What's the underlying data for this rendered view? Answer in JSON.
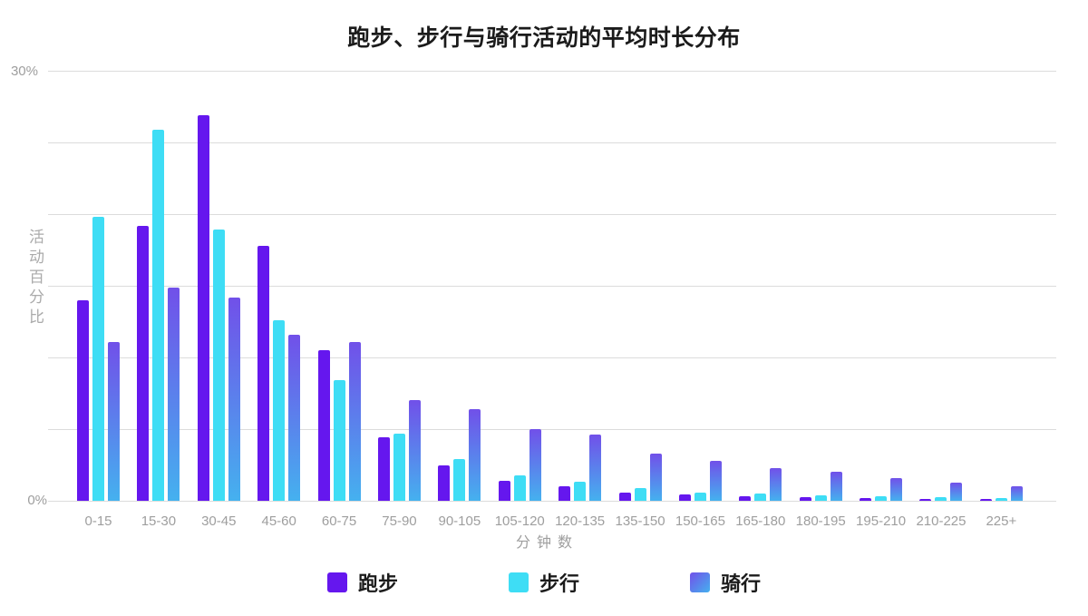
{
  "chart_data": {
    "type": "bar",
    "title": "跑步、步行与骑行活动的平均时长分布",
    "xlabel": "分钟数",
    "ylabel": "活动百分比",
    "ylim": [
      0,
      30
    ],
    "grid": true,
    "legend_position": "bottom",
    "y_tick_labels": [
      "30%",
      "0%"
    ],
    "y_gridlines_pct": [
      0,
      5,
      10,
      15,
      20,
      25,
      30
    ],
    "categories": [
      "0-15",
      "15-30",
      "30-45",
      "45-60",
      "60-75",
      "75-90",
      "90-105",
      "105-120",
      "120-135",
      "135-150",
      "150-165",
      "165-180",
      "180-195",
      "195-210",
      "210-225",
      "225+"
    ],
    "series": [
      {
        "key": "run",
        "name": "跑步",
        "color": "#6517ee",
        "values": [
          14,
          19.2,
          26.9,
          17.8,
          10.5,
          4.4,
          2.5,
          1.4,
          1.0,
          0.6,
          0.45,
          0.3,
          0.25,
          0.2,
          0.15,
          0.1
        ]
      },
      {
        "key": "walk",
        "name": "步行",
        "color": "#3eddf5",
        "values": [
          19.8,
          25.9,
          18.9,
          12.6,
          8.4,
          4.7,
          2.9,
          1.8,
          1.3,
          0.9,
          0.6,
          0.5,
          0.35,
          0.3,
          0.25,
          0.2
        ]
      },
      {
        "key": "cycle",
        "name": "骑行",
        "color_top": "#7150e9",
        "color_bottom": "#45b1ef",
        "values": [
          11.1,
          14.9,
          14.2,
          11.6,
          11.1,
          7.0,
          6.4,
          5.0,
          4.6,
          3.3,
          2.8,
          2.3,
          2.0,
          1.6,
          1.25,
          1.0
        ]
      }
    ],
    "text_color": "#1b1b1b",
    "axis_text_color": "#9e9e9e",
    "gridline_color": "#dcdcdc"
  }
}
